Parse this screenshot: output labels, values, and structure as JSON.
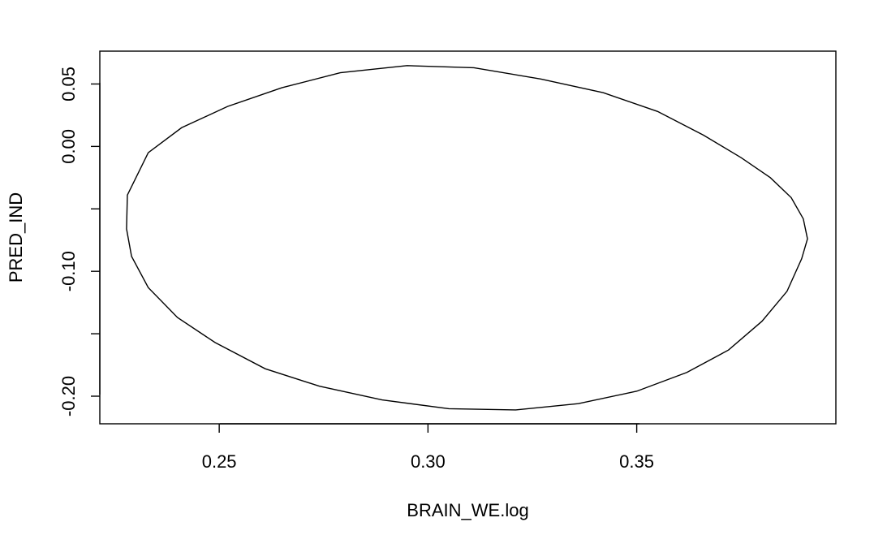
{
  "chart_data": {
    "type": "scatter",
    "title": "",
    "xlabel": "BRAIN_WE.log",
    "ylabel": "PRED_IND",
    "xlim": [
      0.2214,
      0.3977
    ],
    "ylim": [
      -0.2221,
      0.0763
    ],
    "grid": false,
    "legend": "none",
    "x_ticks": [
      0.25,
      0.3,
      0.35
    ],
    "x_tick_labels": [
      "0.25",
      "0.30",
      "0.35"
    ],
    "y_ticks": [
      -0.2,
      -0.15,
      -0.1,
      -0.05,
      0.0,
      0.05
    ],
    "y_tick_labels": [
      "-0.20",
      "",
      "-0.10",
      "",
      "0.00",
      "0.05"
    ],
    "series": [
      {
        "kind": "ellipse",
        "stroke_color": "#000000",
        "x": [
          0.3909,
          0.3899,
          0.387,
          0.382,
          0.375,
          0.366,
          0.355,
          0.342,
          0.327,
          0.311,
          0.295,
          0.279,
          0.265,
          0.252,
          0.241,
          0.233,
          0.228,
          0.2278,
          0.229,
          0.233,
          0.24,
          0.249,
          0.261,
          0.274,
          0.289,
          0.305,
          0.321,
          0.336,
          0.35,
          0.362,
          0.372,
          0.38,
          0.386,
          0.3895,
          0.3909
        ],
        "y": [
          -0.074,
          -0.058,
          -0.041,
          -0.025,
          -0.009,
          0.009,
          0.028,
          0.043,
          0.054,
          0.063,
          0.0647,
          0.059,
          0.047,
          0.032,
          0.015,
          -0.005,
          -0.039,
          -0.066,
          -0.088,
          -0.113,
          -0.137,
          -0.157,
          -0.178,
          -0.192,
          -0.203,
          -0.21,
          -0.211,
          -0.206,
          -0.196,
          -0.181,
          -0.163,
          -0.14,
          -0.116,
          -0.09,
          -0.074
        ]
      }
    ]
  }
}
